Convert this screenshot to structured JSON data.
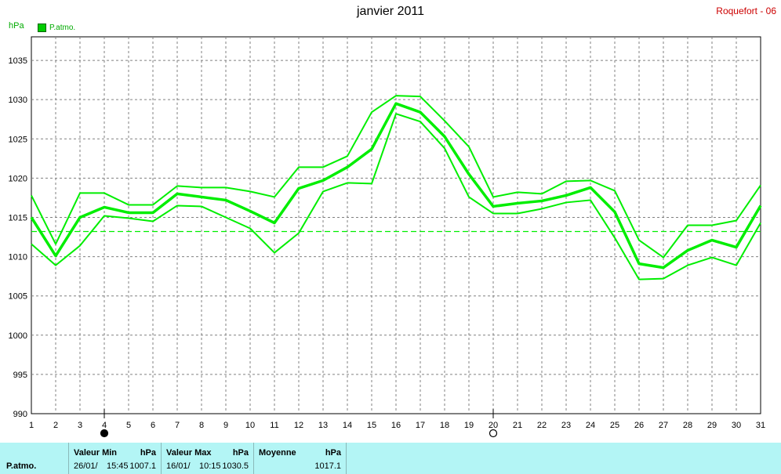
{
  "header": {
    "title": "janvier 2011",
    "station": "Roquefort - 06"
  },
  "chart_data": {
    "type": "line",
    "title": "janvier 2011",
    "ylabel": "hPa",
    "ylim": [
      990,
      1038
    ],
    "yticks": [
      990,
      995,
      1000,
      1005,
      1010,
      1015,
      1020,
      1025,
      1030,
      1035
    ],
    "categories": [
      1,
      2,
      3,
      4,
      5,
      6,
      7,
      8,
      9,
      10,
      11,
      12,
      13,
      14,
      15,
      16,
      17,
      18,
      19,
      20,
      21,
      22,
      23,
      24,
      25,
      26,
      27,
      28,
      29,
      30,
      31
    ],
    "grid": true,
    "legend": {
      "label": "P.atmo.",
      "color": "#00cc00",
      "position": "top-left"
    },
    "series": [
      {
        "name": "P.atmo.",
        "role": "max",
        "values": [
          1017.8,
          1011.6,
          1018.1,
          1018.1,
          1016.6,
          1016.6,
          1019.0,
          1018.8,
          1018.8,
          1018.3,
          1017.6,
          1021.4,
          1021.4,
          1022.8,
          1028.4,
          1030.5,
          1030.4,
          1027.3,
          1024.0,
          1017.6,
          1018.2,
          1018.0,
          1019.6,
          1019.7,
          1018.4,
          1012.1,
          1009.9,
          1014.0,
          1014.0,
          1014.6,
          1019.1
        ]
      },
      {
        "name": "P.atmo.",
        "role": "moyenne",
        "values": [
          1015.0,
          1010.1,
          1015.0,
          1016.3,
          1015.6,
          1015.6,
          1018.0,
          1017.6,
          1017.2,
          1015.8,
          1014.3,
          1018.7,
          1019.7,
          1021.4,
          1023.7,
          1029.5,
          1028.4,
          1025.3,
          1020.5,
          1016.4,
          1016.8,
          1017.1,
          1017.8,
          1018.8,
          1015.7,
          1009.1,
          1008.6,
          1010.8,
          1012.1,
          1011.2,
          1016.5
        ]
      },
      {
        "name": "P.atmo.",
        "role": "min",
        "values": [
          1011.6,
          1008.9,
          1011.4,
          1015.2,
          1014.9,
          1014.5,
          1016.5,
          1016.4,
          1015.0,
          1013.6,
          1010.5,
          1013.0,
          1018.3,
          1019.4,
          1019.3,
          1028.2,
          1027.2,
          1023.8,
          1017.6,
          1015.5,
          1015.5,
          1016.1,
          1016.9,
          1017.2,
          1012.4,
          1007.1,
          1007.2,
          1008.9,
          1009.9,
          1008.9,
          1014.3
        ]
      }
    ],
    "average_line": 1013.2,
    "moon_phases": [
      {
        "day": 4,
        "phase": "new",
        "symbol": "●"
      },
      {
        "day": 20,
        "phase": "full",
        "symbol": "○"
      }
    ]
  },
  "stats": {
    "row_label": "P.atmo.",
    "min": {
      "label": "Valeur Min",
      "unit": "hPa",
      "date": "26/01/",
      "time": "15:45",
      "value": "1007.1"
    },
    "max": {
      "label": "Valeur Max",
      "unit": "hPa",
      "date": "16/01/",
      "time": "10:15",
      "value": "1030.5"
    },
    "mean": {
      "label": "Moyenne",
      "unit": "hPa",
      "value": "1017.1"
    }
  },
  "colors": {
    "series": "#00ee00",
    "grid": "#808080",
    "panel": "#b3f5f5",
    "station": "#cc0000"
  }
}
